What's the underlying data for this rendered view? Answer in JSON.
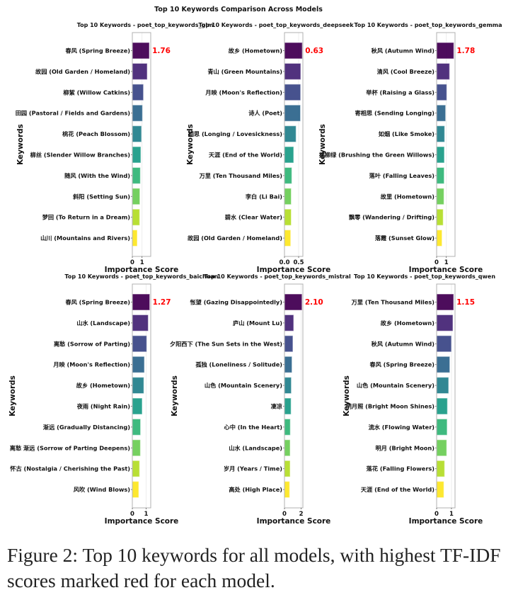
{
  "figure": {
    "title": "Top 10 Keywords Comparison Across Models",
    "caption": "Figure 2: Top 10 keywords for all models, with highest TF-IDF scores marked red for each model.",
    "highlight_color": "#ff0000",
    "palette": [
      "#440154",
      "#482878",
      "#3e4989",
      "#31688e",
      "#26828e",
      "#1f9e89",
      "#35b779",
      "#6ece58",
      "#b5de2b",
      "#fde725"
    ]
  },
  "chart_data": [
    {
      "type": "bar",
      "orientation": "horizontal",
      "title": "Top 10 Keywords - poet_top_keywords_glm",
      "xlabel": "Importance Score",
      "ylabel": "Keywords",
      "categories": [
        "春风 (Spring Breeze)",
        "故园 (Old Garden / Homeland)",
        "柳絮 (Willow Catkins)",
        "田园 (Pastoral / Fields and Gardens)",
        "桃花 (Peach Blossom)",
        "柳丝 (Slender Willow Branches)",
        "随风 (With the Wind)",
        "斜阳 (Setting Sun)",
        "梦回 (To Return in a Dream)",
        "山川 (Mountains and Rivers)"
      ],
      "values": [
        1.76,
        1.54,
        1.15,
        1.05,
        0.95,
        0.88,
        0.83,
        0.78,
        0.76,
        0.51
      ],
      "xticks": [
        0,
        1
      ],
      "xtick_labels": [
        "0",
        "1"
      ],
      "xlim": [
        0,
        1.9
      ],
      "highlight_label": "1.76",
      "grid": true
    },
    {
      "type": "bar",
      "orientation": "horizontal",
      "title": "Top 10 Keywords - poet_top_keywords_deepseek",
      "xlabel": "Importance Score",
      "ylabel": "Keywords",
      "categories": [
        "故乡 (Hometown)",
        "青山 (Green Mountains)",
        "月映 (Moon's Reflection)",
        "诗人 (Poet)",
        "相思 (Longing / Lovesickness)",
        "天涯 (End of the World)",
        "万里 (Ten Thousand Miles)",
        "李白 (Li Bai)",
        "碧水 (Clear Water)",
        "故园 (Old Garden / Homeland)"
      ],
      "values": [
        0.63,
        0.575,
        0.57,
        0.565,
        0.41,
        0.325,
        0.26,
        0.24,
        0.24,
        0.22
      ],
      "xticks": [
        0,
        0.5
      ],
      "xtick_labels": [
        "0.0",
        "0.5"
      ],
      "xlim": [
        0,
        0.65
      ],
      "highlight_label": "0.63",
      "grid": true
    },
    {
      "type": "bar",
      "orientation": "horizontal",
      "title": "Top 10 Keywords - poet_top_keywords_gemma",
      "xlabel": "Importance Score",
      "ylabel": "Keywords",
      "categories": [
        "秋风 (Autumn Wind)",
        "清风 (Cool Breeze)",
        "举杯 (Raising a Glass)",
        "寄相思 (Sending Longing)",
        "如烟 (Like Smoke)",
        "拂柳绿 (Brushing the Green Willows)",
        "落叶 (Falling Leaves)",
        "故里 (Hometown)",
        "飘零 (Wandering / Drifting)",
        "落霞 (Sunset Glow)"
      ],
      "values": [
        1.78,
        1.34,
        1.05,
        0.93,
        0.83,
        0.8,
        0.78,
        0.76,
        0.68,
        0.56
      ],
      "xticks": [
        0,
        1
      ],
      "xtick_labels": [
        "0",
        "1"
      ],
      "xlim": [
        0,
        1.9
      ],
      "highlight_label": "1.78",
      "grid": true
    },
    {
      "type": "bar",
      "orientation": "horizontal",
      "title": "Top 10 Keywords - poet_top_keywords_baichuan",
      "xlabel": "Importance Score",
      "ylabel": "Keywords",
      "categories": [
        "春风 (Spring Breeze)",
        "山水 (Landscape)",
        "离愁 (Sorrow of Parting)",
        "月映 (Moon's Reflection)",
        "故乡 (Hometown)",
        "夜雨 (Night Rain)",
        "渐远 (Gradually Distancing)",
        "离愁 渐远 (Sorrow of Parting Deepens)",
        "怀古 (Nostalgia / Cherishing the Past)",
        "风吹 (Wind Blows)"
      ],
      "values": [
        1.27,
        1.16,
        1.05,
        0.88,
        0.84,
        0.72,
        0.6,
        0.59,
        0.53,
        0.47
      ],
      "xticks": [
        0,
        1
      ],
      "xtick_labels": [
        "0",
        "1"
      ],
      "xlim": [
        0,
        1.34
      ],
      "highlight_label": "1.27",
      "grid": true
    },
    {
      "type": "bar",
      "orientation": "horizontal",
      "title": "Top 10 Keywords - poet_top_keywords_mistral",
      "xlabel": "Importance Score",
      "ylabel": "Keywords",
      "categories": [
        "怅望 (Gazing Disappointedly)",
        "庐山 (Mount Lu)",
        "夕阳西下 (The Sun Sets in the West)",
        "孤独 (Loneliness / Solitude)",
        "山色 (Mountain Scenery)",
        "凄凉",
        "心中 (In the Heart)",
        "山水 (Landscape)",
        "岁月 (Years / Time)",
        "高处 (High Place)"
      ],
      "values": [
        2.1,
        1.1,
        1.01,
        0.9,
        0.82,
        0.79,
        0.7,
        0.68,
        0.68,
        0.62
      ],
      "xticks": [
        0,
        2
      ],
      "xtick_labels": [
        "0",
        "2"
      ],
      "xlim": [
        0,
        2.2
      ],
      "highlight_label": "2.10",
      "grid": true
    },
    {
      "type": "bar",
      "orientation": "horizontal",
      "title": "Top 10 Keywords - poet_top_keywords_qwen",
      "xlabel": "Importance Score",
      "ylabel": "Keywords",
      "categories": [
        "万里 (Ten Thousand Miles)",
        "故乡 (Hometown)",
        "秋风 (Autumn Wind)",
        "春风 (Spring Breeze)",
        "山色 (Mountain Scenery)",
        "明月照 (Bright Moon Shines)",
        "流水 (Flowing Water)",
        "明月 (Bright Moon)",
        "落花 (Falling Flowers)",
        "天涯 (End of the World)"
      ],
      "values": [
        1.15,
        1.1,
        1.0,
        0.89,
        0.81,
        0.73,
        0.71,
        0.68,
        0.54,
        0.49
      ],
      "xticks": [
        0,
        1
      ],
      "xtick_labels": [
        "0",
        "1"
      ],
      "xlim": [
        0,
        1.24
      ],
      "highlight_label": "1.15",
      "grid": true
    }
  ]
}
